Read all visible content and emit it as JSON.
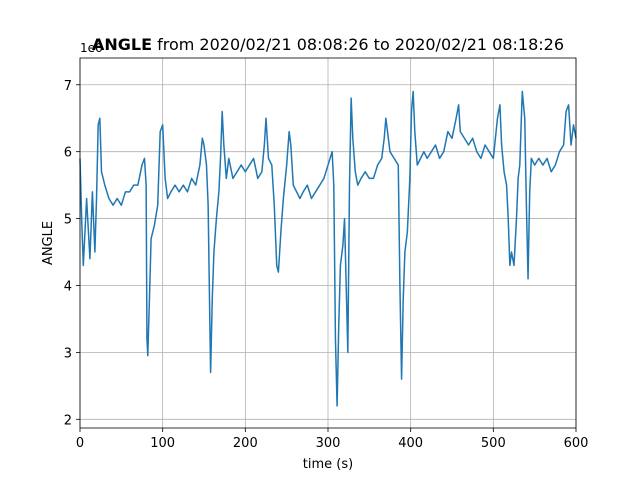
{
  "chart_data": {
    "type": "line",
    "title_bold": "ANGLE",
    "title": "from 2020/02/21 08:08:26 to 2020/02/21 08:18:26",
    "offset_text": "1e6",
    "x_label": "time (s)",
    "y_label": "ANGLE",
    "xlim": [
      0,
      600
    ],
    "xticks": [
      0,
      100,
      200,
      300,
      400,
      500,
      600
    ],
    "ylim": [
      1.87,
      7.4
    ],
    "yticks": [
      2,
      3,
      4,
      5,
      6,
      7
    ],
    "grid": true,
    "x": [
      0,
      2,
      4,
      8,
      12,
      15,
      18,
      20,
      22,
      24,
      26,
      30,
      35,
      40,
      45,
      50,
      55,
      60,
      65,
      70,
      75,
      78,
      80,
      81,
      82,
      84,
      86,
      90,
      94,
      97,
      100,
      103,
      106,
      110,
      115,
      120,
      125,
      130,
      135,
      140,
      145,
      148,
      150,
      153,
      155,
      157,
      158,
      160,
      162,
      165,
      168,
      170,
      172,
      174,
      177,
      180,
      185,
      190,
      195,
      200,
      205,
      210,
      215,
      220,
      223,
      225,
      228,
      232,
      235,
      238,
      240,
      243,
      246,
      250,
      253,
      255,
      258,
      262,
      266,
      270,
      275,
      280,
      285,
      290,
      295,
      300,
      305,
      307,
      309,
      311,
      313,
      315,
      318,
      320,
      322,
      324,
      326,
      328,
      330,
      333,
      336,
      340,
      345,
      350,
      355,
      360,
      365,
      368,
      370,
      372,
      375,
      380,
      385,
      387,
      389,
      391,
      393,
      396,
      399,
      401,
      403,
      405,
      408,
      412,
      416,
      420,
      425,
      430,
      435,
      440,
      445,
      450,
      455,
      458,
      460,
      465,
      470,
      475,
      480,
      485,
      490,
      495,
      500,
      505,
      508,
      510,
      513,
      516,
      518,
      520,
      522,
      525,
      528,
      530,
      532,
      535,
      538,
      540,
      542,
      544,
      546,
      550,
      555,
      560,
      565,
      570,
      575,
      580,
      585,
      588,
      591,
      594,
      597,
      600
    ],
    "series": [
      {
        "name": "ANGLE",
        "color": "#1f77b4",
        "values": [
          5.9,
          5.0,
          4.3,
          5.3,
          4.4,
          5.4,
          4.5,
          5.3,
          6.4,
          6.5,
          5.7,
          5.5,
          5.3,
          5.2,
          5.3,
          5.2,
          5.4,
          5.4,
          5.5,
          5.5,
          5.8,
          5.9,
          5.5,
          3.2,
          2.95,
          3.8,
          4.7,
          4.9,
          5.2,
          6.3,
          6.4,
          5.6,
          5.3,
          5.4,
          5.5,
          5.4,
          5.5,
          5.4,
          5.6,
          5.5,
          5.8,
          6.2,
          6.1,
          5.8,
          5.2,
          3.5,
          2.7,
          3.8,
          4.5,
          5.0,
          5.4,
          5.9,
          6.6,
          6.1,
          5.6,
          5.9,
          5.6,
          5.7,
          5.8,
          5.7,
          5.8,
          5.9,
          5.6,
          5.7,
          6.1,
          6.5,
          5.9,
          5.8,
          5.2,
          4.3,
          4.2,
          4.8,
          5.3,
          5.8,
          6.3,
          6.1,
          5.5,
          5.4,
          5.3,
          5.4,
          5.5,
          5.3,
          5.4,
          5.5,
          5.6,
          5.8,
          6.0,
          5.5,
          3.2,
          2.2,
          3.4,
          4.3,
          4.6,
          5.0,
          4.0,
          3.0,
          5.5,
          6.8,
          6.2,
          5.7,
          5.5,
          5.6,
          5.7,
          5.6,
          5.6,
          5.8,
          5.9,
          6.2,
          6.5,
          6.3,
          6.0,
          5.9,
          5.8,
          4.0,
          2.6,
          3.8,
          4.5,
          4.8,
          5.6,
          6.6,
          6.9,
          6.3,
          5.8,
          5.9,
          6.0,
          5.9,
          6.0,
          6.1,
          5.9,
          6.0,
          6.3,
          6.2,
          6.5,
          6.7,
          6.3,
          6.2,
          6.1,
          6.2,
          6.0,
          5.9,
          6.1,
          6.0,
          5.9,
          6.5,
          6.7,
          6.1,
          5.7,
          5.5,
          5.0,
          4.3,
          4.5,
          4.3,
          5.0,
          5.6,
          5.8,
          6.9,
          6.5,
          5.2,
          4.1,
          5.4,
          5.9,
          5.8,
          5.9,
          5.8,
          5.9,
          5.7,
          5.8,
          6.0,
          6.1,
          6.6,
          6.7,
          6.1,
          6.4,
          6.2
        ]
      }
    ]
  }
}
